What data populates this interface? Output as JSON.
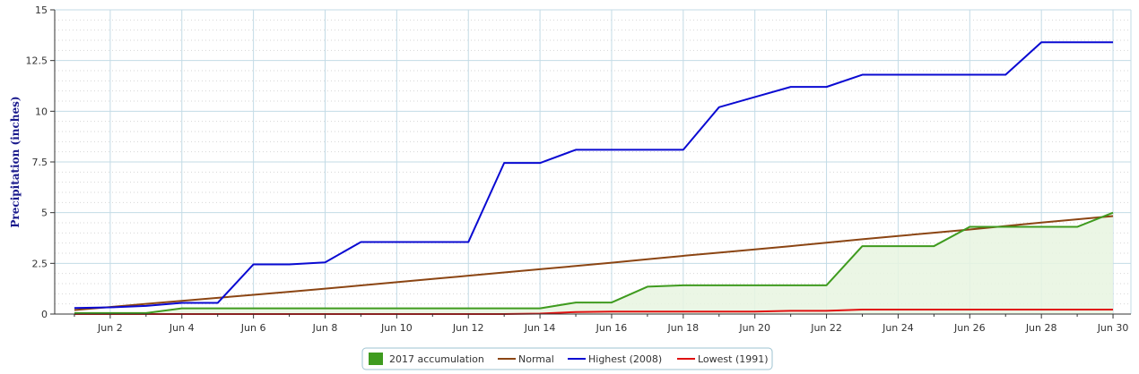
{
  "chart_data": {
    "type": "line",
    "title": "",
    "xlabel": "",
    "ylabel": "Precipitation (inches)",
    "ylim": [
      0,
      15
    ],
    "xlim_days": [
      1,
      30
    ],
    "grid": true,
    "legend_position": "bottom-center",
    "y_ticks": [
      "0",
      "2.5",
      "5",
      "7.5",
      "10",
      "12.5",
      "15"
    ],
    "y_tick_values": [
      0,
      2.5,
      5,
      7.5,
      10,
      12.5,
      15
    ],
    "x_ticks": [
      "Jun 2",
      "Jun 4",
      "Jun 6",
      "Jun 8",
      "Jun 10",
      "Jun 12",
      "Jun 14",
      "Jun 16",
      "Jun 18",
      "Jun 20",
      "Jun 22",
      "Jun 24",
      "Jun 26",
      "Jun 28",
      "Jun 30"
    ],
    "x_tick_days": [
      2,
      4,
      6,
      8,
      10,
      12,
      14,
      16,
      18,
      20,
      22,
      24,
      26,
      28,
      30
    ],
    "x_days": [
      1,
      2,
      3,
      4,
      5,
      6,
      7,
      8,
      9,
      10,
      11,
      12,
      13,
      14,
      15,
      16,
      17,
      18,
      19,
      20,
      21,
      22,
      23,
      24,
      25,
      26,
      27,
      28,
      29,
      30
    ],
    "series": [
      {
        "name": "2017 accumulation",
        "kind": "area",
        "color": "#3f9b1f",
        "fill": "#e8f4e0",
        "values": [
          0.05,
          0.05,
          0.05,
          0.28,
          0.28,
          0.28,
          0.28,
          0.28,
          0.28,
          0.28,
          0.28,
          0.28,
          0.28,
          0.28,
          0.57,
          0.57,
          1.35,
          1.42,
          1.42,
          1.42,
          1.42,
          1.42,
          3.35,
          3.35,
          3.35,
          4.3,
          4.3,
          4.3,
          4.3,
          5.0
        ]
      },
      {
        "name": "Normal",
        "kind": "line",
        "color": "#8b4513",
        "values": [
          0.2,
          0.35,
          0.5,
          0.65,
          0.8,
          0.95,
          1.1,
          1.25,
          1.41,
          1.57,
          1.73,
          1.89,
          2.05,
          2.21,
          2.37,
          2.53,
          2.7,
          2.87,
          3.03,
          3.19,
          3.35,
          3.52,
          3.69,
          3.85,
          4.01,
          4.17,
          4.34,
          4.51,
          4.67,
          4.83
        ]
      },
      {
        "name": "Highest (2008)",
        "kind": "line",
        "color": "#0a0ad2",
        "values": [
          0.3,
          0.33,
          0.4,
          0.55,
          0.55,
          2.45,
          2.45,
          2.55,
          3.55,
          3.55,
          3.55,
          3.55,
          7.45,
          7.45,
          8.1,
          8.1,
          8.1,
          8.1,
          10.2,
          10.7,
          11.2,
          11.2,
          11.8,
          11.8,
          11.8,
          11.8,
          11.8,
          13.4,
          13.4,
          13.4
        ]
      },
      {
        "name": "Lowest (1991)",
        "kind": "line",
        "color": "#e01010",
        "values": [
          0,
          0,
          0,
          0,
          0,
          0,
          0,
          0,
          0,
          0,
          0,
          0,
          0,
          0.02,
          0.1,
          0.12,
          0.12,
          0.12,
          0.12,
          0.12,
          0.16,
          0.16,
          0.22,
          0.22,
          0.22,
          0.22,
          0.22,
          0.22,
          0.22,
          0.22
        ]
      }
    ]
  }
}
